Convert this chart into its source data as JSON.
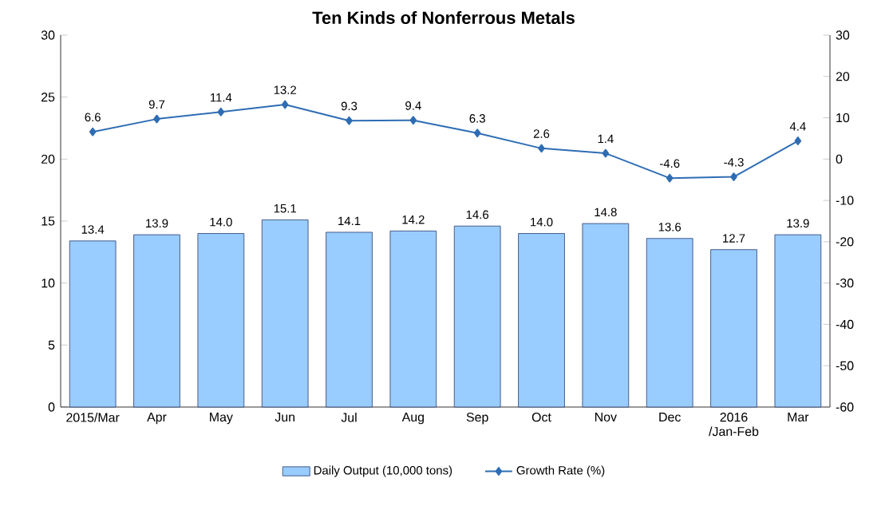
{
  "chart_data": {
    "type": "bar",
    "title": "Ten Kinds of Nonferrous Metals",
    "categories": [
      "2015/Mar",
      "Apr",
      "May",
      "Jun",
      "Jul",
      "Aug",
      "Sep",
      "Oct",
      "Nov",
      "Dec",
      "2016 /Jan-Feb",
      "Mar"
    ],
    "series": [
      {
        "name": "Daily Output (10,000 tons)",
        "color": "#99ccff",
        "values": [
          13.4,
          13.9,
          14.0,
          15.1,
          14.1,
          14.2,
          14.6,
          14.0,
          14.8,
          13.6,
          12.7,
          13.9
        ],
        "value_labels": [
          "13.4",
          "13.9",
          "14.0",
          "15.1",
          "14.1",
          "14.2",
          "14.6",
          "14.0",
          "14.8",
          "13.6",
          "12.7",
          "13.9"
        ]
      },
      {
        "name": "Growth Rate (%)",
        "type": "line",
        "axis": "y2",
        "color": "#2e6db4",
        "values": [
          6.6,
          9.7,
          11.4,
          13.2,
          9.3,
          9.4,
          6.3,
          2.6,
          1.4,
          -4.6,
          -4.3,
          4.4
        ],
        "value_labels": [
          "6.6",
          "9.7",
          "11.4",
          "13.2",
          "9.3",
          "9.4",
          "6.3",
          "2.6",
          "1.4",
          "-4.6",
          "-4.3",
          "4.4"
        ]
      }
    ],
    "ylim": [
      0,
      30
    ],
    "yticks": [
      0,
      5,
      10,
      15,
      20,
      25,
      30
    ],
    "y2lim": [
      -60,
      30
    ],
    "y2ticks": [
      -60,
      -50,
      -40,
      -30,
      -20,
      -10,
      0,
      10,
      20,
      30
    ],
    "legend": "bottom",
    "marker": "diamond"
  }
}
